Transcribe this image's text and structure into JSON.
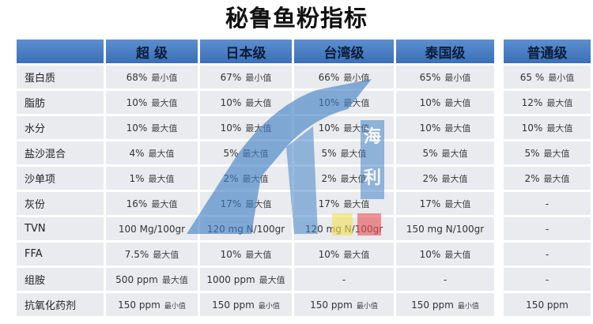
{
  "title": "秘鲁鱼粉指标",
  "columns": [
    "",
    "超 级",
    "日本级",
    "台湾级",
    "泰国级",
    "普通级"
  ],
  "rows": [
    {
      "label": "蛋白质",
      "cells": [
        {
          "v": "68%",
          "q": "最小值"
        },
        {
          "v": "67%",
          "q": "最小值"
        },
        {
          "v": "66%",
          "q": "最小值"
        },
        {
          "v": "65%",
          "q": "最小值"
        },
        {
          "v": "65 %",
          "q": "最小值"
        }
      ]
    },
    {
      "label": "脂肪",
      "cells": [
        {
          "v": "10%",
          "q": "最大值"
        },
        {
          "v": "10%",
          "q": "最大值"
        },
        {
          "v": "10%",
          "q": "最大值"
        },
        {
          "v": "10%",
          "q": "最大值"
        },
        {
          "v": "12%",
          "q": "最大值"
        }
      ]
    },
    {
      "label": "水分",
      "cells": [
        {
          "v": "10%",
          "q": "最大值"
        },
        {
          "v": "10%",
          "q": "最大值"
        },
        {
          "v": "10%",
          "q": "最大值"
        },
        {
          "v": "10%",
          "q": "最大值"
        },
        {
          "v": "10%",
          "q": "最大值"
        }
      ]
    },
    {
      "label": "盐沙混合",
      "cells": [
        {
          "v": "4%",
          "q": "最大值"
        },
        {
          "v": "5%",
          "q": "最大值"
        },
        {
          "v": "5%",
          "q": "最大值"
        },
        {
          "v": "5%",
          "q": "最大值"
        },
        {
          "v": "5%",
          "q": "最大值"
        }
      ]
    },
    {
      "label": "沙单项",
      "cells": [
        {
          "v": "1%",
          "q": "最大值"
        },
        {
          "v": "2%",
          "q": "最大值"
        },
        {
          "v": "2%",
          "q": "最大值"
        },
        {
          "v": "2%",
          "q": "最大值"
        },
        {
          "v": "2%",
          "q": "最大值"
        }
      ]
    },
    {
      "label": "灰份",
      "cells": [
        {
          "v": "16%",
          "q": "最大值"
        },
        {
          "v": "17%",
          "q": "最大值"
        },
        {
          "v": "17%",
          "q": "最大值"
        },
        {
          "v": "17%",
          "q": "最大值"
        },
        {
          "v": "-",
          "q": ""
        }
      ]
    },
    {
      "label": "TVN",
      "cells": [
        {
          "v": "100 Mg/100gr",
          "q": ""
        },
        {
          "v": "120 mg N/100gr",
          "q": ""
        },
        {
          "v": "120 mg N/100gr",
          "q": ""
        },
        {
          "v": "150 mg N/100gr",
          "q": ""
        },
        {
          "v": "-",
          "q": ""
        }
      ]
    },
    {
      "label": "FFA",
      "cells": [
        {
          "v": "7.5%",
          "q": "最大值"
        },
        {
          "v": "10%",
          "q": "最大值"
        },
        {
          "v": "10%",
          "q": "最大值"
        },
        {
          "v": "10%",
          "q": "最大值"
        },
        {
          "v": "-",
          "q": ""
        }
      ]
    },
    {
      "label": "组胺",
      "cells": [
        {
          "v": "500 ppm",
          "q": "最大值"
        },
        {
          "v": "1000 ppm",
          "q": "最大值"
        },
        {
          "v": "-",
          "q": ""
        },
        {
          "v": "-",
          "q": ""
        },
        {
          "v": "-",
          "q": ""
        }
      ]
    },
    {
      "label": "抗氧化药剂",
      "cells": [
        {
          "v": "150 ppm",
          "q": "最小值",
          "s": true
        },
        {
          "v": "150 ppm",
          "q": "最小值",
          "s": true
        },
        {
          "v": "150 ppm",
          "q": "最小值",
          "s": true
        },
        {
          "v": "150 ppm",
          "q": "最小值",
          "s": true
        },
        {
          "v": "150 ppm",
          "q": ""
        }
      ]
    }
  ],
  "watermark": {
    "text": "海利",
    "colors": {
      "blue": "#3f7fc4",
      "yellow": "#f2df58",
      "red": "#e9535a"
    }
  }
}
